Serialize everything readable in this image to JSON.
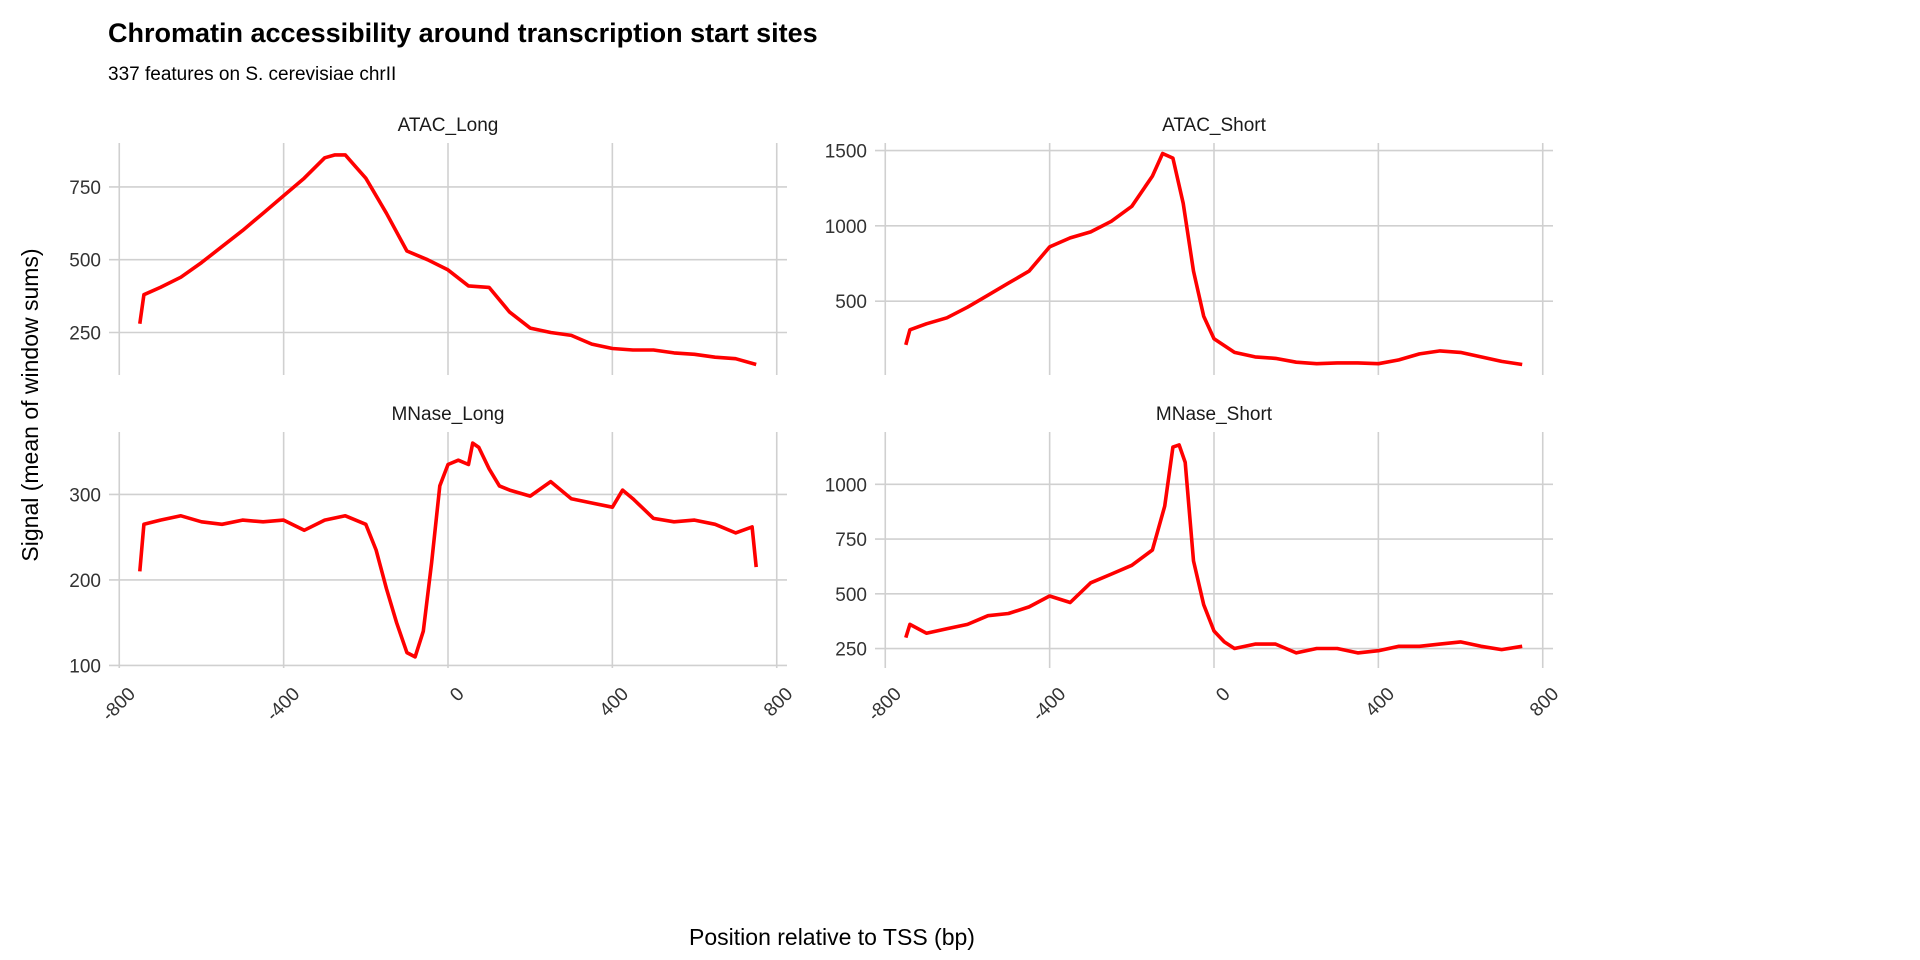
{
  "title": "Chromatin accessibility around transcription start sites",
  "subtitle": "337 features on S. cerevisiae chrII",
  "xlabel": "Position relative to TSS (bp)",
  "ylabel": "Signal (mean of window sums)",
  "line_color": "#ff0000",
  "chart_data": [
    {
      "type": "line",
      "facet": "ATAC_Long",
      "xlim": [
        -825,
        825
      ],
      "ylim": [
        104,
        901
      ],
      "xticks": [
        -800,
        -400,
        0,
        400,
        800
      ],
      "yticks": [
        250,
        500,
        750
      ],
      "grid": true,
      "x": [
        -750,
        -740,
        -700,
        -650,
        -600,
        -550,
        -500,
        -450,
        -400,
        -350,
        -300,
        -275,
        -250,
        -225,
        -200,
        -150,
        -100,
        -50,
        0,
        50,
        100,
        150,
        200,
        250,
        300,
        350,
        400,
        450,
        500,
        550,
        600,
        650,
        700,
        750
      ],
      "y": [
        280,
        380,
        405,
        440,
        490,
        545,
        600,
        660,
        720,
        780,
        850,
        860,
        860,
        820,
        780,
        660,
        530,
        500,
        465,
        410,
        405,
        320,
        265,
        250,
        240,
        210,
        195,
        190,
        190,
        180,
        175,
        165,
        160,
        140
      ]
    },
    {
      "type": "line",
      "facet": "ATAC_Short",
      "xlim": [
        -825,
        825
      ],
      "ylim": [
        10,
        1550
      ],
      "xticks": [
        -800,
        -400,
        0,
        400,
        800
      ],
      "yticks": [
        500,
        1000,
        1500
      ],
      "grid": true,
      "x": [
        -750,
        -740,
        -700,
        -650,
        -600,
        -550,
        -500,
        -450,
        -400,
        -350,
        -300,
        -250,
        -200,
        -150,
        -125,
        -100,
        -75,
        -50,
        -25,
        0,
        50,
        100,
        150,
        200,
        250,
        300,
        350,
        400,
        450,
        500,
        550,
        600,
        650,
        700,
        750
      ],
      "y": [
        210,
        310,
        350,
        390,
        460,
        540,
        620,
        700,
        860,
        920,
        960,
        1030,
        1130,
        1330,
        1480,
        1450,
        1150,
        700,
        400,
        250,
        160,
        130,
        120,
        95,
        85,
        90,
        90,
        85,
        110,
        150,
        170,
        160,
        130,
        100,
        80
      ]
    },
    {
      "type": "line",
      "facet": "MNase_Long",
      "xlim": [
        -825,
        825
      ],
      "ylim": [
        97,
        373
      ],
      "xticks": [
        -800,
        -400,
        0,
        400,
        800
      ],
      "yticks": [
        100,
        200,
        300
      ],
      "grid": true,
      "x": [
        -750,
        -740,
        -700,
        -650,
        -600,
        -550,
        -500,
        -450,
        -400,
        -350,
        -300,
        -250,
        -200,
        -175,
        -150,
        -125,
        -100,
        -80,
        -60,
        -40,
        -20,
        0,
        25,
        50,
        60,
        75,
        100,
        125,
        150,
        200,
        250,
        300,
        350,
        400,
        425,
        450,
        500,
        550,
        600,
        650,
        700,
        740,
        750
      ],
      "y": [
        210,
        265,
        270,
        275,
        268,
        265,
        270,
        268,
        270,
        258,
        270,
        275,
        265,
        235,
        190,
        150,
        115,
        110,
        140,
        220,
        310,
        335,
        340,
        335,
        360,
        355,
        330,
        310,
        305,
        298,
        315,
        295,
        290,
        285,
        305,
        295,
        272,
        268,
        270,
        265,
        255,
        262,
        215
      ]
    },
    {
      "type": "line",
      "facet": "MNase_Short",
      "xlim": [
        -825,
        825
      ],
      "ylim": [
        161,
        1239
      ],
      "xticks": [
        -800,
        -400,
        0,
        400,
        800
      ],
      "yticks": [
        250,
        500,
        750,
        1000
      ],
      "grid": true,
      "x": [
        -750,
        -740,
        -700,
        -650,
        -600,
        -550,
        -500,
        -450,
        -400,
        -350,
        -300,
        -250,
        -200,
        -150,
        -120,
        -100,
        -85,
        -70,
        -50,
        -25,
        0,
        25,
        50,
        100,
        150,
        200,
        250,
        300,
        350,
        400,
        450,
        500,
        550,
        600,
        650,
        700,
        750
      ],
      "y": [
        300,
        360,
        320,
        340,
        360,
        400,
        410,
        440,
        490,
        460,
        550,
        590,
        630,
        700,
        900,
        1170,
        1180,
        1100,
        650,
        450,
        330,
        280,
        250,
        270,
        270,
        230,
        250,
        250,
        230,
        240,
        260,
        260,
        270,
        280,
        260,
        245,
        260
      ]
    }
  ]
}
